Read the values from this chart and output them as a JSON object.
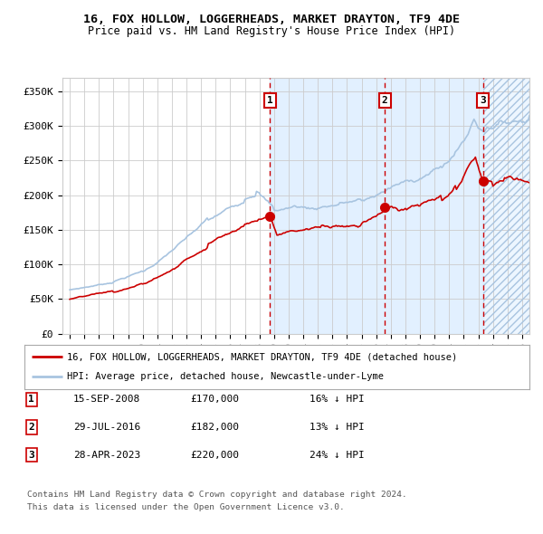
{
  "title": "16, FOX HOLLOW, LOGGERHEADS, MARKET DRAYTON, TF9 4DE",
  "subtitle": "Price paid vs. HM Land Registry's House Price Index (HPI)",
  "legend_line1": "16, FOX HOLLOW, LOGGERHEADS, MARKET DRAYTON, TF9 4DE (detached house)",
  "legend_line2": "HPI: Average price, detached house, Newcastle-under-Lyme",
  "footnote1": "Contains HM Land Registry data © Crown copyright and database right 2024.",
  "footnote2": "This data is licensed under the Open Government Licence v3.0.",
  "hpi_color": "#a8c4e0",
  "price_color": "#cc0000",
  "dot_color": "#cc0000",
  "vline_color": "#cc0000",
  "shade_color": "#ddeeff",
  "hatch_color": "#a8c4e0",
  "grid_color": "#cccccc",
  "background_color": "#ffffff",
  "label_bg": "#ffffff",
  "label_border": "#cc0000",
  "transactions": [
    {
      "label": "1",
      "date_num": 2008.71,
      "price": 170000,
      "note": "15-SEP-2008",
      "pct": "16% ↓ HPI"
    },
    {
      "label": "2",
      "date_num": 2016.58,
      "price": 182000,
      "note": "29-JUL-2016",
      "pct": "13% ↓ HPI"
    },
    {
      "label": "3",
      "date_num": 2023.33,
      "price": 220000,
      "note": "28-APR-2023",
      "pct": "24% ↓ HPI"
    }
  ],
  "table_rows": [
    [
      "1",
      "15-SEP-2008",
      "£170,000",
      "16% ↓ HPI"
    ],
    [
      "2",
      "29-JUL-2016",
      "£182,000",
      "13% ↓ HPI"
    ],
    [
      "3",
      "28-APR-2023",
      "£220,000",
      "24% ↓ HPI"
    ]
  ],
  "ylim": [
    0,
    370000
  ],
  "xlim_start": 1994.5,
  "xlim_end": 2026.5,
  "yticks": [
    0,
    50000,
    100000,
    150000,
    200000,
    250000,
    300000,
    350000
  ],
  "ytick_labels": [
    "£0",
    "£50K",
    "£100K",
    "£150K",
    "£200K",
    "£250K",
    "£300K",
    "£350K"
  ]
}
